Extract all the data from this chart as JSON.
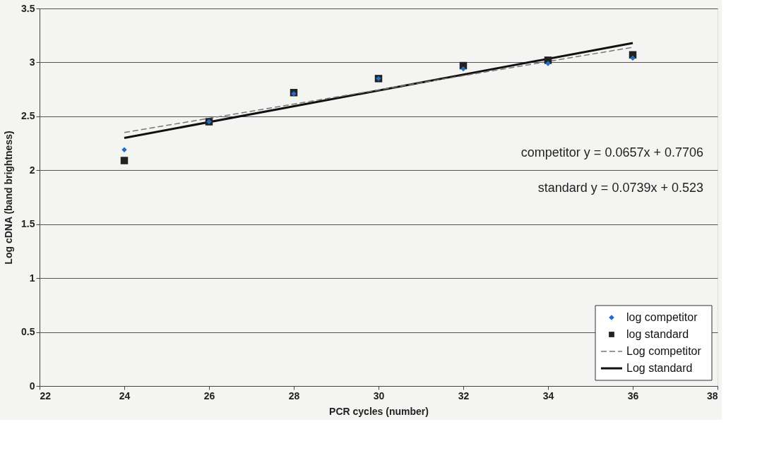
{
  "chart_data": {
    "type": "scatter",
    "xlabel": "PCR cycles (number)",
    "ylabel": "Log cDNA (band brightness)",
    "xlim": [
      22,
      38
    ],
    "xticks": [
      22,
      24,
      26,
      28,
      30,
      32,
      34,
      36,
      38
    ],
    "ylim": [
      0,
      3.5
    ],
    "yticks": [
      0,
      0.5,
      1,
      1.5,
      2,
      2.5,
      3,
      3.5
    ],
    "grid": "y",
    "legend": "bottom right",
    "annotations": [
      "competitor y = 0.0657x + 0.7706",
      "standard y = 0.0739x + 0.523"
    ],
    "series": [
      {
        "name": "log competitor",
        "type": "scatter",
        "marker": "diamond",
        "color": "#1f6fc6",
        "x": [
          24,
          26,
          28,
          30,
          32,
          34,
          36
        ],
        "values": [
          2.19,
          2.45,
          2.71,
          2.85,
          2.94,
          2.99,
          3.04
        ]
      },
      {
        "name": "log standard",
        "type": "scatter",
        "marker": "square",
        "color": "#222222",
        "x": [
          24,
          26,
          28,
          30,
          32,
          34,
          36
        ],
        "values": [
          2.09,
          2.45,
          2.72,
          2.85,
          2.97,
          3.02,
          3.07
        ]
      },
      {
        "name": "Log competitor",
        "type": "line",
        "line_style": "dashed",
        "color": "#777777",
        "x": [
          24,
          36
        ],
        "values": [
          2.35,
          3.14
        ]
      },
      {
        "name": "Log standard",
        "type": "line",
        "line_style": "solid",
        "color": "#111111",
        "x": [
          24,
          36
        ],
        "values": [
          2.3,
          3.18
        ]
      }
    ]
  }
}
